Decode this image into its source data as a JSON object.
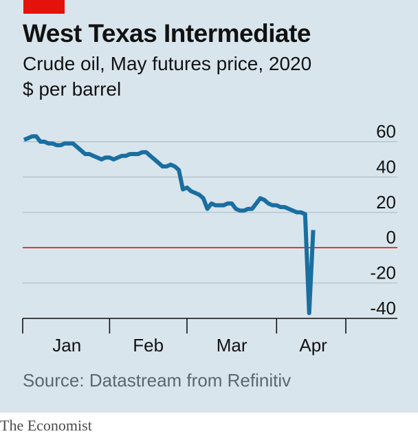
{
  "brand_color": "#e3120b",
  "header": {
    "title": "West Texas Intermediate",
    "subtitle": "Crude oil, May futures price, 2020",
    "unit": "$ per barrel"
  },
  "footer": {
    "source": "Source: Datastream from Refinitiv",
    "publisher": "The Economist"
  },
  "chart_data": {
    "type": "line",
    "title": "West Texas Intermediate",
    "subtitle": "Crude oil, May futures price, 2020",
    "ylabel": "$ per barrel",
    "xlabel": "",
    "ylim": [
      -40,
      60
    ],
    "yticks": [
      60,
      40,
      20,
      0,
      -20,
      -40
    ],
    "ytick_labels": [
      "60",
      "40",
      "20",
      "0",
      "-20",
      "-40"
    ],
    "x_unit": "trading-day index (0 = first trading day of Jan)",
    "xlim": [
      0,
      79
    ],
    "x_month_boundaries": [
      0,
      21,
      40,
      62,
      79
    ],
    "month_labels": [
      {
        "label": "Jan",
        "center": 10.5
      },
      {
        "label": "Feb",
        "center": 30.5
      },
      {
        "label": "Mar",
        "center": 51
      },
      {
        "label": "Apr",
        "center": 71
      }
    ],
    "zero_line_color": "#e3120b",
    "series": [
      {
        "name": "WTI May futures",
        "color": "#1a6ea0",
        "x": [
          0,
          1,
          2,
          3,
          4,
          5,
          6,
          7,
          8,
          9,
          10,
          11,
          12,
          13,
          14,
          15,
          16,
          17,
          18,
          19,
          20,
          21,
          22,
          23,
          24,
          25,
          26,
          27,
          28,
          29,
          30,
          31,
          32,
          33,
          34,
          35,
          36,
          37,
          38,
          39,
          40,
          41,
          42,
          43,
          44,
          45,
          46,
          47,
          48,
          49,
          50,
          51,
          52,
          53,
          54,
          55,
          56,
          57,
          58,
          59,
          60,
          61,
          62,
          63,
          64,
          65,
          66,
          67,
          68,
          69,
          70,
          71,
          72,
          73,
          74,
          75,
          76,
          77,
          78,
          79,
          80
        ],
        "values": [
          61,
          62,
          63,
          63,
          60,
          60,
          59,
          59,
          58,
          58,
          59,
          59,
          59,
          57,
          55,
          53,
          53,
          52,
          51,
          50,
          51,
          51,
          50,
          51,
          52,
          52,
          53,
          53,
          53,
          54,
          54,
          52,
          50,
          48,
          46,
          46,
          47,
          46,
          44,
          33,
          34,
          32,
          31,
          30,
          28,
          22,
          25,
          24,
          24,
          24,
          25,
          25,
          22,
          21,
          21,
          22,
          22,
          25,
          28,
          27,
          25,
          24,
          24,
          23,
          23,
          22,
          21,
          20,
          20,
          19,
          -37,
          10,
          null,
          null,
          null,
          null,
          null,
          null,
          null,
          null,
          null
        ]
      }
    ],
    "grid": true
  }
}
